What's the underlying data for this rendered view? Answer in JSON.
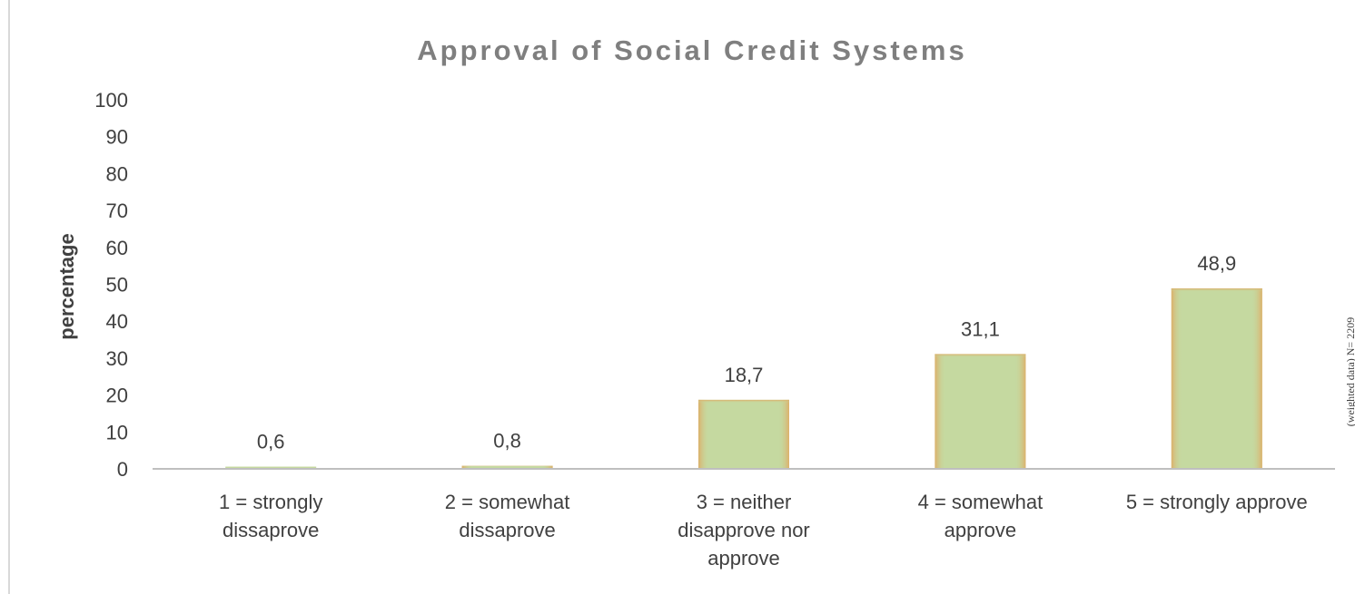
{
  "chart_data": {
    "type": "bar",
    "title": "Approval of Social Credit Systems",
    "xlabel": "",
    "ylabel": "percentage",
    "ylim": [
      0,
      100
    ],
    "yticks": [
      0,
      10,
      20,
      30,
      40,
      50,
      60,
      70,
      80,
      90,
      100
    ],
    "categories": [
      [
        "1 = strongly",
        "dissaprove"
      ],
      [
        "2 = somewhat",
        "dissaprove"
      ],
      [
        "3 = neither",
        "disapprove nor",
        "approve"
      ],
      [
        "4 = somewhat",
        "approve"
      ],
      [
        "5 = strongly approve"
      ]
    ],
    "values": [
      0.6,
      0.8,
      18.7,
      31.1,
      48.9
    ],
    "value_labels": [
      "0,6",
      "0,8",
      "18,7",
      "31,1",
      "48,9"
    ],
    "note": "(weighted data) N= 2209",
    "grid": false,
    "legend": "none",
    "colors": {
      "bar_fill": "#c5d9a0",
      "bar_edge": "#ddb06a",
      "title": "#7f7f7f",
      "text": "#404040",
      "axis": "#bfbfbf"
    }
  }
}
